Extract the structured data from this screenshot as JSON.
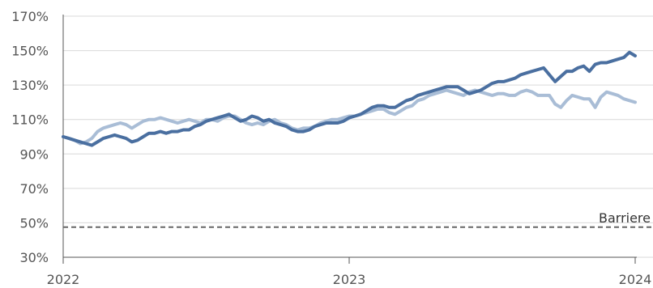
{
  "chart_data": {
    "type": "line",
    "title": "",
    "xlabel": "",
    "ylabel": "",
    "ylim": [
      30,
      170
    ],
    "y_ticks": [
      "30%",
      "50%",
      "70%",
      "90%",
      "110%",
      "130%",
      "150%",
      "170%"
    ],
    "x_ticks": [
      "2022",
      "2023",
      "2024"
    ],
    "xlim": [
      2022.0,
      2024.0
    ],
    "grid": "horizontal",
    "legend": "none",
    "series": [
      {
        "color": "#4a6fa0",
        "x": [
          2022.0,
          2022.02,
          2022.04,
          2022.06,
          2022.08,
          2022.1,
          2022.12,
          2022.14,
          2022.16,
          2022.18,
          2022.2,
          2022.22,
          2022.24,
          2022.26,
          2022.28,
          2022.3,
          2022.32,
          2022.34,
          2022.36,
          2022.38,
          2022.4,
          2022.42,
          2022.44,
          2022.46,
          2022.48,
          2022.5,
          2022.52,
          2022.54,
          2022.56,
          2022.58,
          2022.6,
          2022.62,
          2022.64,
          2022.66,
          2022.68,
          2022.7,
          2022.72,
          2022.74,
          2022.76,
          2022.78,
          2022.8,
          2022.82,
          2022.84,
          2022.86,
          2022.88,
          2022.9,
          2022.92,
          2022.94,
          2022.96,
          2022.98,
          2023.0,
          2023.02,
          2023.04,
          2023.06,
          2023.08,
          2023.1,
          2023.12,
          2023.14,
          2023.16,
          2023.18,
          2023.2,
          2023.22,
          2023.24,
          2023.26,
          2023.28,
          2023.3,
          2023.32,
          2023.34,
          2023.36,
          2023.38,
          2023.4,
          2023.42,
          2023.44,
          2023.46,
          2023.48,
          2023.5,
          2023.52,
          2023.54,
          2023.56,
          2023.58,
          2023.6,
          2023.62,
          2023.64,
          2023.66,
          2023.68,
          2023.7,
          2023.72,
          2023.74,
          2023.76,
          2023.78,
          2023.8,
          2023.82,
          2023.84,
          2023.86,
          2023.88,
          2023.9,
          2023.92,
          2023.94,
          2023.96,
          2023.98,
          2024.0
        ],
        "values": [
          100,
          99,
          98,
          97,
          96,
          95,
          97,
          99,
          100,
          101,
          100,
          99,
          97,
          98,
          100,
          102,
          102,
          103,
          102,
          103,
          103,
          104,
          104,
          106,
          107,
          109,
          110,
          111,
          112,
          113,
          111,
          109,
          110,
          112,
          111,
          109,
          110,
          108,
          107,
          106,
          104,
          103,
          103,
          104,
          106,
          107,
          108,
          108,
          108,
          109,
          111,
          112,
          113,
          115,
          117,
          118,
          118,
          117,
          117,
          119,
          121,
          122,
          124,
          125,
          126,
          127,
          128,
          129,
          129,
          129,
          127,
          125,
          126,
          127,
          129,
          131,
          132,
          132,
          133,
          134,
          136,
          137,
          138,
          139,
          140,
          136,
          132,
          135,
          138,
          138,
          140,
          141,
          138,
          142,
          143,
          143,
          144,
          145,
          146,
          149,
          147
        ]
      },
      {
        "color": "#a9bdd6",
        "x": [
          2022.0,
          2022.02,
          2022.04,
          2022.06,
          2022.08,
          2022.1,
          2022.12,
          2022.14,
          2022.16,
          2022.18,
          2022.2,
          2022.22,
          2022.24,
          2022.26,
          2022.28,
          2022.3,
          2022.32,
          2022.34,
          2022.36,
          2022.38,
          2022.4,
          2022.42,
          2022.44,
          2022.46,
          2022.48,
          2022.5,
          2022.52,
          2022.54,
          2022.56,
          2022.58,
          2022.6,
          2022.62,
          2022.64,
          2022.66,
          2022.68,
          2022.7,
          2022.72,
          2022.74,
          2022.76,
          2022.78,
          2022.8,
          2022.82,
          2022.84,
          2022.86,
          2022.88,
          2022.9,
          2022.92,
          2022.94,
          2022.96,
          2022.98,
          2023.0,
          2023.02,
          2023.04,
          2023.06,
          2023.08,
          2023.1,
          2023.12,
          2023.14,
          2023.16,
          2023.18,
          2023.2,
          2023.22,
          2023.24,
          2023.26,
          2023.28,
          2023.3,
          2023.32,
          2023.34,
          2023.36,
          2023.38,
          2023.4,
          2023.42,
          2023.44,
          2023.46,
          2023.48,
          2023.5,
          2023.52,
          2023.54,
          2023.56,
          2023.58,
          2023.6,
          2023.62,
          2023.64,
          2023.66,
          2023.68,
          2023.7,
          2023.72,
          2023.74,
          2023.76,
          2023.78,
          2023.8,
          2023.82,
          2023.84,
          2023.86,
          2023.88,
          2023.9,
          2023.92,
          2023.94,
          2023.96,
          2023.98,
          2024.0
        ],
        "values": [
          100,
          99,
          98,
          96,
          97,
          99,
          103,
          105,
          106,
          107,
          108,
          107,
          105,
          107,
          109,
          110,
          110,
          111,
          110,
          109,
          108,
          109,
          110,
          109,
          108,
          110,
          110,
          109,
          111,
          112,
          112,
          110,
          108,
          107,
          108,
          107,
          109,
          110,
          108,
          107,
          105,
          104,
          105,
          105,
          106,
          108,
          109,
          110,
          110,
          111,
          112,
          112,
          113,
          114,
          115,
          116,
          116,
          114,
          113,
          115,
          117,
          118,
          121,
          122,
          124,
          125,
          126,
          127,
          126,
          125,
          124,
          126,
          127,
          126,
          125,
          124,
          125,
          125,
          124,
          124,
          126,
          127,
          126,
          124,
          124,
          124,
          119,
          117,
          121,
          124,
          123,
          122,
          122,
          117,
          123,
          126,
          125,
          124,
          122,
          121,
          120
        ]
      }
    ],
    "annotations": [
      {
        "type": "hline",
        "y": 47.5,
        "label": "Barriere",
        "style": "dashed",
        "color": "#666666"
      }
    ]
  }
}
